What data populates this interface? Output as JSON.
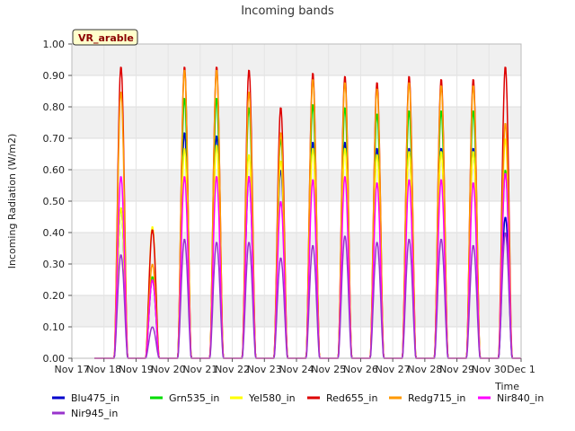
{
  "chart_data": {
    "type": "line",
    "title": "Incoming bands",
    "xlabel": "Time",
    "ylabel": "Incoming Radiation (W/m2)",
    "ylim": [
      0,
      1.0
    ],
    "xlim": [
      "2020-11-17",
      "2020-12-01"
    ],
    "ytick_labels": [
      "0.00",
      "0.10",
      "0.20",
      "0.30",
      "0.40",
      "0.50",
      "0.60",
      "0.70",
      "0.80",
      "0.90",
      "1.00"
    ],
    "xtick_labels": [
      "Nov 17",
      "Nov 18",
      "Nov 19",
      "Nov 20",
      "Nov 21",
      "Nov 22",
      "Nov 23",
      "Nov 24",
      "Nov 25",
      "Nov 26",
      "Nov 27",
      "Nov 28",
      "Nov 29",
      "Nov 30",
      "Dec 1"
    ],
    "grid": "horizontal bands",
    "legend_position": "bottom",
    "annotation": "VR_arable",
    "days": [
      "Nov 17",
      "Nov 18",
      "Nov 19",
      "Nov 20",
      "Nov 21",
      "Nov 22",
      "Nov 23",
      "Nov 24",
      "Nov 25",
      "Nov 26",
      "Nov 27",
      "Nov 28",
      "Nov 29",
      "Nov 30"
    ],
    "series": [
      {
        "name": "Blu475_in",
        "color": "#0000cc",
        "daily_peak": [
          0.0,
          0.48,
          0.25,
          0.72,
          0.71,
          0.58,
          0.6,
          0.69,
          0.69,
          0.67,
          0.67,
          0.67,
          0.67,
          0.45
        ]
      },
      {
        "name": "Grn535_in",
        "color": "#00dd00",
        "daily_peak": [
          0.0,
          0.48,
          0.26,
          0.83,
          0.83,
          0.8,
          0.7,
          0.81,
          0.8,
          0.78,
          0.79,
          0.79,
          0.79,
          0.6
        ]
      },
      {
        "name": "Yel580_in",
        "color": "#ffff00",
        "daily_peak": [
          0.0,
          0.48,
          0.42,
          0.67,
          0.68,
          0.65,
          0.63,
          0.67,
          0.67,
          0.65,
          0.66,
          0.66,
          0.66,
          0.7
        ]
      },
      {
        "name": "Red655_in",
        "color": "#dd0000",
        "daily_peak": [
          0.0,
          0.93,
          0.41,
          0.93,
          0.93,
          0.92,
          0.8,
          0.91,
          0.9,
          0.88,
          0.9,
          0.89,
          0.89,
          0.93
        ]
      },
      {
        "name": "Redg715_in",
        "color": "#ff9900",
        "daily_peak": [
          0.0,
          0.85,
          0.3,
          0.92,
          0.92,
          0.85,
          0.72,
          0.89,
          0.88,
          0.86,
          0.88,
          0.87,
          0.87,
          0.75
        ]
      },
      {
        "name": "Nir840_in",
        "color": "#ff00ff",
        "daily_peak": [
          0.0,
          0.58,
          0.25,
          0.58,
          0.58,
          0.58,
          0.5,
          0.57,
          0.58,
          0.56,
          0.57,
          0.57,
          0.56,
          0.59
        ]
      },
      {
        "name": "Nir945_in",
        "color": "#9933cc",
        "daily_peak": [
          0.0,
          0.33,
          0.1,
          0.38,
          0.37,
          0.37,
          0.32,
          0.36,
          0.39,
          0.37,
          0.38,
          0.38,
          0.36,
          0.4
        ]
      }
    ]
  }
}
